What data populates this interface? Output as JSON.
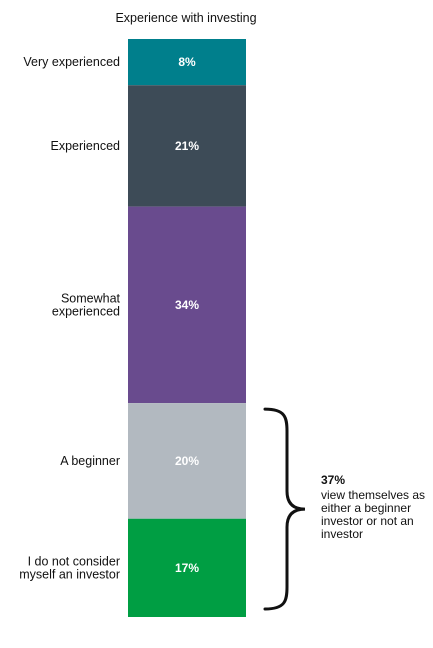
{
  "chart_data": {
    "type": "bar",
    "stacked": true,
    "orientation": "vertical",
    "title": "Experience with investing",
    "categories": [
      "Very experienced",
      "Experienced",
      "Somewhat experienced",
      "A beginner",
      "I do not consider myself an investor"
    ],
    "category_lines": [
      [
        "Very experienced"
      ],
      [
        "Experienced"
      ],
      [
        "Somewhat",
        "experienced"
      ],
      [
        "A beginner"
      ],
      [
        "I do not consider",
        "myself an investor"
      ]
    ],
    "values": [
      8,
      21,
      34,
      20,
      17
    ],
    "data_labels": [
      "8%",
      "21%",
      "34%",
      "20%",
      "17%"
    ],
    "colors": [
      "#007f8c",
      "#3d4b57",
      "#694b8e",
      "#b2b9c0",
      "#009e43"
    ],
    "unit": "%",
    "ylim": [
      0,
      100
    ],
    "grid": false,
    "legend": "none",
    "annotation": {
      "brackets_categories": [
        "A beginner",
        "I do not consider myself an investor"
      ],
      "value": "37%",
      "text": "view themselves as either a beginner investor or not an investor"
    }
  }
}
